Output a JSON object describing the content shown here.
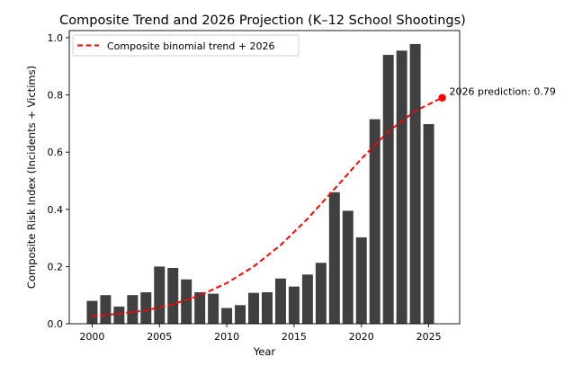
{
  "chart_data": {
    "type": "bar",
    "title": "Composite Trend and 2026 Projection (K–12 School Shootings)",
    "xlabel": "Year",
    "ylabel": "Composite Risk Index (Incidents + Victims)",
    "xlim": [
      1998.3,
      2027.3
    ],
    "ylim": [
      0,
      1.025
    ],
    "xticks": [
      2000,
      2005,
      2010,
      2015,
      2020,
      2025
    ],
    "xtick_labels": [
      "2000",
      "2005",
      "2010",
      "2015",
      "2020",
      "2025"
    ],
    "yticks": [
      0.0,
      0.2,
      0.4,
      0.6,
      0.8,
      1.0
    ],
    "ytick_labels": [
      "0.0",
      "0.2",
      "0.4",
      "0.6",
      "0.8",
      "1.0"
    ],
    "grid": false,
    "bar_color": "#404040",
    "bars": {
      "years": [
        2000,
        2001,
        2002,
        2003,
        2004,
        2005,
        2006,
        2007,
        2008,
        2009,
        2010,
        2011,
        2012,
        2013,
        2014,
        2015,
        2016,
        2017,
        2018,
        2019,
        2020,
        2021,
        2022,
        2023,
        2024,
        2025
      ],
      "values": [
        0.08,
        0.1,
        0.06,
        0.1,
        0.11,
        0.2,
        0.195,
        0.155,
        0.11,
        0.105,
        0.055,
        0.065,
        0.108,
        0.11,
        0.158,
        0.13,
        0.172,
        0.213,
        0.46,
        0.395,
        0.302,
        0.715,
        0.94,
        0.955,
        0.978,
        0.698
      ]
    },
    "trend": {
      "name": "Composite binomial trend + 2026",
      "color": "#ff0000",
      "style": "dashed",
      "x": [
        2000,
        2002,
        2004,
        2006,
        2008,
        2010,
        2012,
        2014,
        2016,
        2018,
        2020,
        2022,
        2024,
        2026
      ],
      "y": [
        0.027,
        0.035,
        0.047,
        0.068,
        0.099,
        0.142,
        0.2,
        0.275,
        0.367,
        0.471,
        0.577,
        0.672,
        0.744,
        0.79
      ]
    },
    "prediction": {
      "x": 2026,
      "y": 0.79,
      "label": "2026 prediction: 0.79"
    },
    "legend": {
      "position": "top-left",
      "entries": [
        "Composite binomial trend + 2026"
      ]
    }
  }
}
